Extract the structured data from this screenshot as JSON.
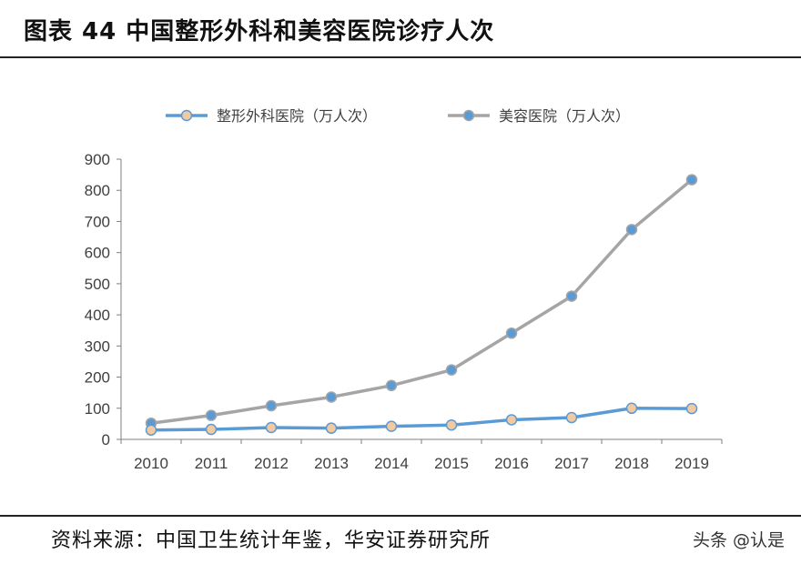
{
  "header": {
    "title": "图表 44  中国整形外科和美容医院诊疗人次"
  },
  "footer": {
    "source": "资料来源：中国卫生统计年鉴，华安证券研究所",
    "watermark": "头条 @认是"
  },
  "colors": {
    "series1_line": "#5b9bd5",
    "series1_marker": "#f2c9a0",
    "series2_line": "#a5a5a5",
    "series2_marker": "#5b9bd5",
    "axis": "#7f7f7f"
  },
  "chart_data": {
    "type": "line",
    "title": "",
    "xlabel": "",
    "ylabel": "",
    "categories": [
      "2010",
      "2011",
      "2012",
      "2013",
      "2014",
      "2015",
      "2016",
      "2017",
      "2018",
      "2019"
    ],
    "ylim": [
      0,
      900
    ],
    "yticks": [
      0,
      100,
      200,
      300,
      400,
      500,
      600,
      700,
      800,
      900
    ],
    "grid": false,
    "legend_position": "top",
    "series": [
      {
        "name": "整形外科医院（万人次）",
        "values": [
          30,
          32,
          38,
          36,
          42,
          46,
          63,
          70,
          100,
          99
        ]
      },
      {
        "name": "美容医院（万人次）",
        "values": [
          52,
          77,
          108,
          136,
          173,
          223,
          341,
          460,
          674,
          834
        ]
      }
    ]
  }
}
